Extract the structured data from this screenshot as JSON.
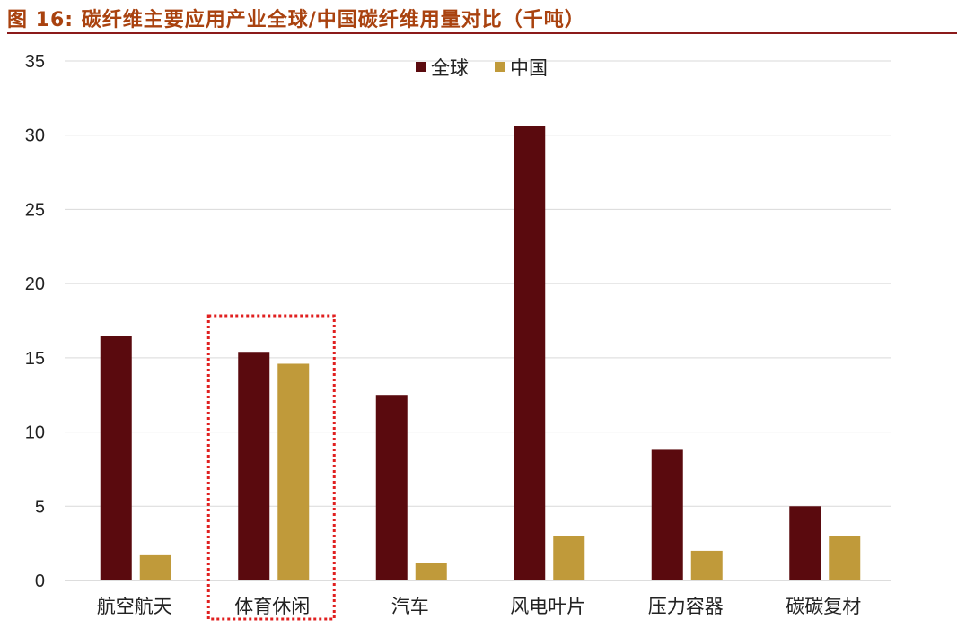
{
  "chart_data": {
    "type": "bar",
    "title": "图 16: 碳纤维主要应用产业全球/中国碳纤维用量对比（千吨）",
    "categories": [
      "航空航天",
      "体育休闲",
      "汽车",
      "风电叶片",
      "压力容器",
      "碳碳复材"
    ],
    "series": [
      {
        "name": "全球",
        "color": "#5a0a0e",
        "values": [
          16.5,
          15.4,
          12.5,
          30.6,
          8.8,
          5.0
        ]
      },
      {
        "name": "中国",
        "color": "#c09a3a",
        "values": [
          1.7,
          14.6,
          1.2,
          3.0,
          2.0,
          3.0
        ]
      }
    ],
    "ylim": [
      0,
      35
    ],
    "yticks": [
      0,
      5,
      10,
      15,
      20,
      25,
      30,
      35
    ],
    "grid": true,
    "legend": "top-center",
    "highlight_category": "体育休闲",
    "highlight_color": "#e02020"
  }
}
